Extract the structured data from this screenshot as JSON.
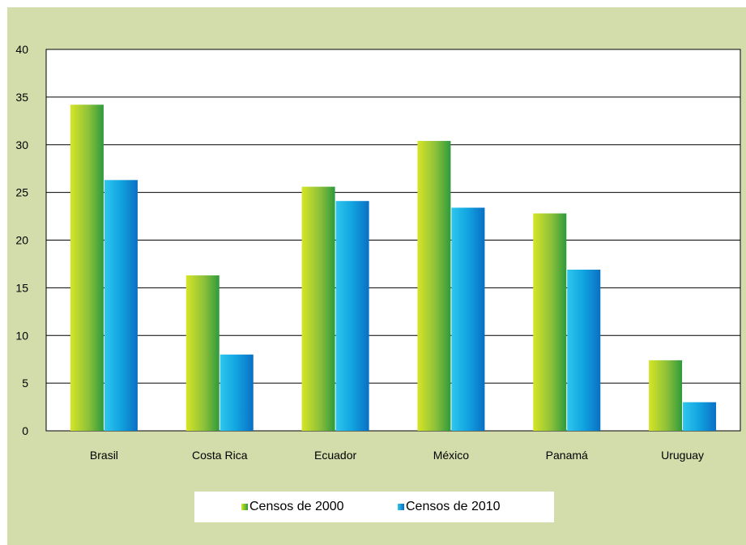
{
  "chart_data": {
    "type": "bar",
    "categories": [
      "Brasil",
      "Costa Rica",
      "Ecuador",
      "México",
      "Panamá",
      "Uruguay"
    ],
    "series": [
      {
        "name": "Censos de 2000",
        "values": [
          34.2,
          16.3,
          25.6,
          30.4,
          22.8,
          7.4
        ],
        "color": "#7cb93a"
      },
      {
        "name": "Censos de 2010",
        "values": [
          26.3,
          8.0,
          24.1,
          23.4,
          16.9,
          3.0
        ],
        "color": "#0a9ee0"
      }
    ],
    "yticks": [
      "0",
      "5",
      "10",
      "15",
      "20",
      "25",
      "30",
      "35",
      "40"
    ],
    "ylim": [
      0,
      40
    ],
    "grid": true,
    "legend_position": "bottom",
    "title": "",
    "xlabel": "",
    "ylabel": ""
  }
}
